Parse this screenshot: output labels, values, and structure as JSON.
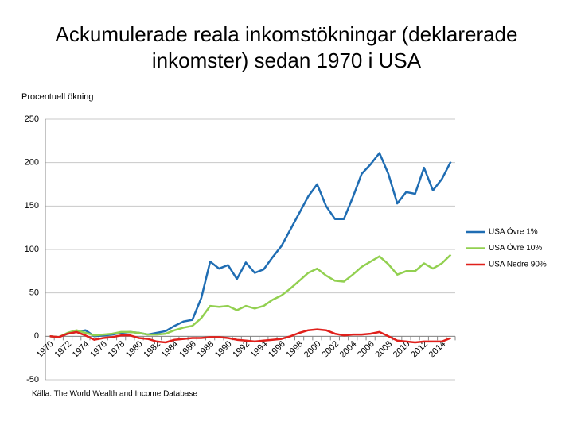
{
  "chart_data": {
    "type": "line",
    "title": "Ackumulerade reala inkomstökningar (deklarerade inkomster) sedan 1970 i USA",
    "y_label": "Procentuell ökning",
    "source": "Källa: The World Wealth and Income Database",
    "categories": [
      "1970",
      null,
      "1972",
      null,
      "1974",
      null,
      "1976",
      null,
      "1978",
      null,
      "1980",
      null,
      "1982",
      null,
      "1984",
      null,
      "1986",
      null,
      "1988",
      null,
      "1990",
      null,
      "1992",
      null,
      "1994",
      null,
      "1996",
      null,
      "1998",
      null,
      "2000",
      null,
      "2002",
      null,
      "2004",
      null,
      "2006",
      null,
      "2008",
      null,
      "2010",
      null,
      "2012",
      null,
      "2014",
      null
    ],
    "series": [
      {
        "name": "USA Övre 1%",
        "color": "#1f6db3",
        "values": [
          0,
          -1,
          3,
          5,
          7,
          0,
          1,
          2,
          4,
          5,
          4,
          2,
          4,
          6,
          12,
          17,
          19,
          44,
          86,
          78,
          82,
          66,
          85,
          73,
          77,
          91,
          104,
          123,
          142,
          161,
          175,
          150,
          135,
          135,
          160,
          187,
          198,
          211,
          187,
          153,
          166,
          164,
          194,
          168,
          181,
          201
        ]
      },
      {
        "name": "USA Övre 10%",
        "color": "#92d050",
        "values": [
          0,
          -1,
          4,
          7,
          4,
          1,
          2,
          3,
          5,
          5,
          4,
          2,
          2,
          3,
          7,
          10,
          12,
          21,
          35,
          34,
          35,
          30,
          35,
          32,
          35,
          42,
          47,
          55,
          64,
          73,
          78,
          70,
          64,
          63,
          71,
          80,
          86,
          92,
          83,
          71,
          75,
          75,
          84,
          78,
          84,
          94
        ]
      },
      {
        "name": "USA Nedre 90%",
        "color": "#e0201b",
        "values": [
          0,
          -1,
          3,
          5,
          1,
          -4,
          -2,
          -1,
          1,
          1,
          -2,
          -3,
          -6,
          -7,
          -4,
          -3,
          -2,
          -2,
          -1,
          -1,
          -2,
          -4,
          -5,
          -6,
          -5,
          -4,
          -3,
          0,
          4,
          7,
          8,
          7,
          3,
          1,
          2,
          2,
          3,
          5,
          0,
          -5,
          -6,
          -7,
          -6,
          -6,
          -6,
          -2
        ]
      }
    ],
    "ylim": [
      -50,
      250
    ],
    "yticks": [
      -50,
      0,
      50,
      100,
      150,
      200,
      250
    ],
    "grid": true,
    "legend": "right"
  }
}
